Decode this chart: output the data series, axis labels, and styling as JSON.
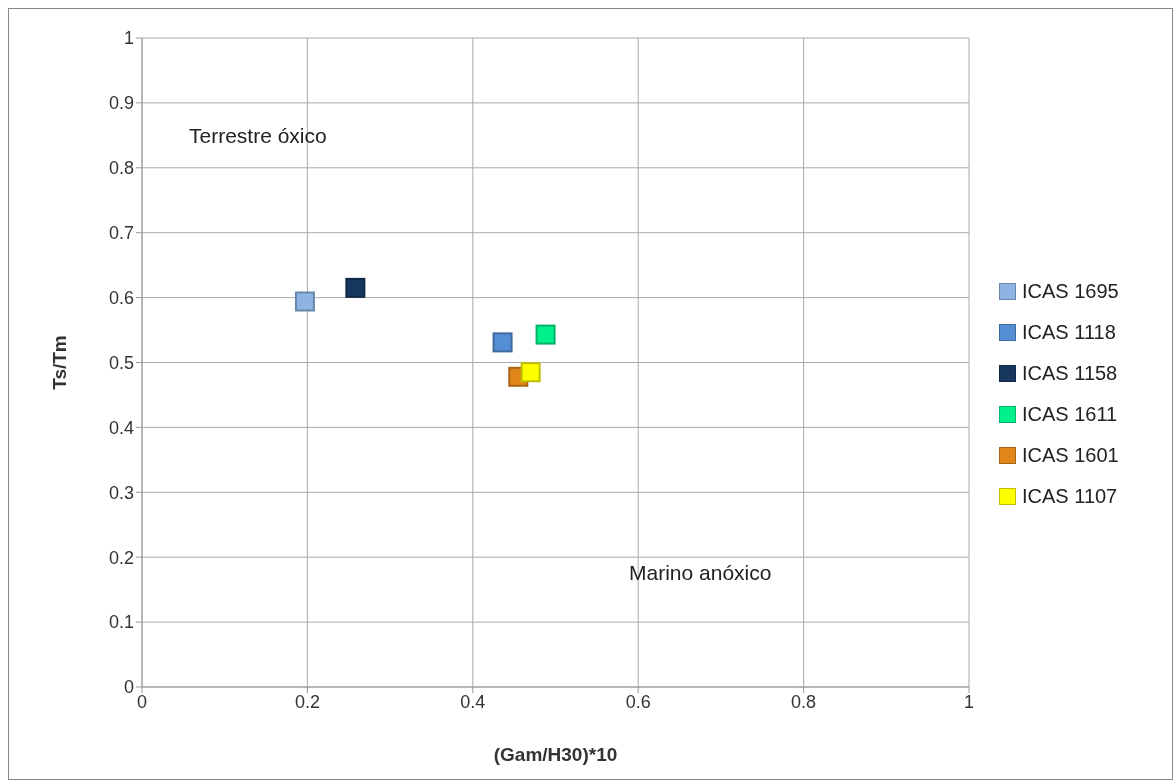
{
  "chart_data": {
    "type": "scatter",
    "xlabel": "(Gam/H30)*10",
    "ylabel": "Ts/Tm",
    "xlim": [
      0,
      1
    ],
    "xticks": [
      0,
      0.2,
      0.4,
      0.6,
      0.8,
      1
    ],
    "ylim": [
      0,
      1
    ],
    "yticks": [
      0,
      0.1,
      0.2,
      0.3,
      0.4,
      0.5,
      0.6,
      0.7,
      0.8,
      0.9,
      1
    ],
    "grid": true,
    "legend": "right",
    "marker": "square",
    "annotations": [
      "Terrestre óxico",
      "Marino anóxico"
    ],
    "series": [
      {
        "name": "ICAS 1695",
        "color": "#8db4e2",
        "x": [
          0.197
        ],
        "values": [
          0.594
        ]
      },
      {
        "name": "ICAS 1118",
        "color": "#558ed5",
        "x": [
          0.436
        ],
        "values": [
          0.531
        ]
      },
      {
        "name": "ICAS 1158",
        "color": "#17375e",
        "x": [
          0.258
        ],
        "values": [
          0.615
        ]
      },
      {
        "name": "ICAS 1611",
        "color": "#00f08c",
        "x": [
          0.488
        ],
        "values": [
          0.543
        ]
      },
      {
        "name": "ICAS 1601",
        "color": "#e0861a",
        "x": [
          0.455
        ],
        "values": [
          0.478
        ]
      },
      {
        "name": "ICAS 1107",
        "color": "#ffff00",
        "x": [
          0.47
        ],
        "values": [
          0.485
        ]
      }
    ]
  }
}
